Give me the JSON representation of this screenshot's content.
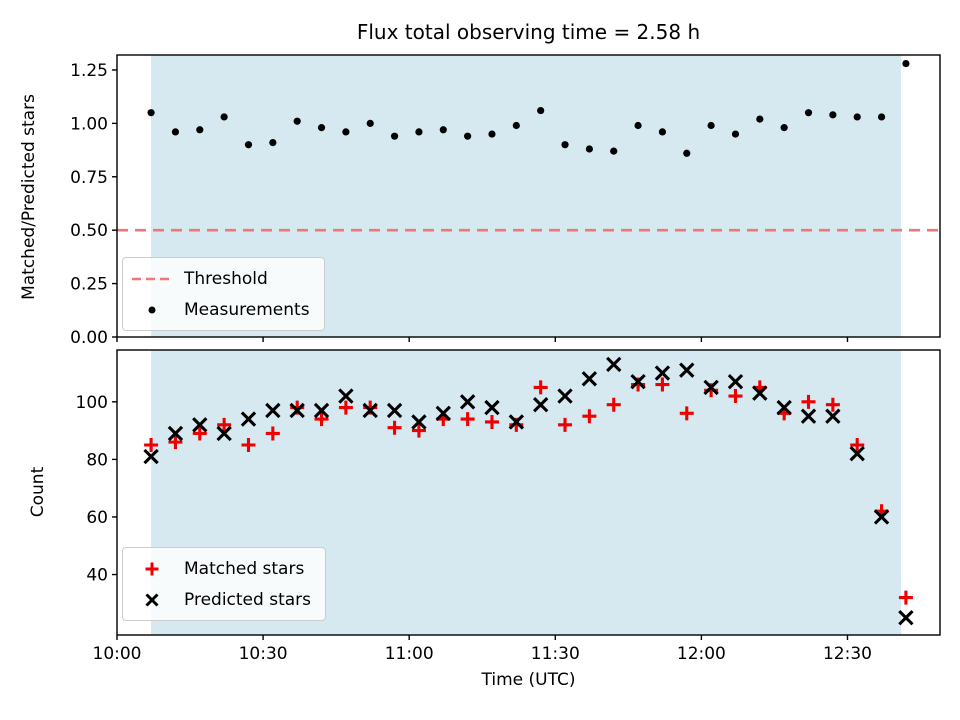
{
  "figure": {
    "title": "Flux total observing time = 2.58 h",
    "background": "#ffffff",
    "shade_color": "#d6e9f0",
    "axis_color": "#000000"
  },
  "x_axis": {
    "label": "Time (UTC)",
    "range_minutes_after_10utc": [
      0,
      169
    ],
    "tick_minutes": [
      0,
      30,
      60,
      90,
      120,
      150
    ],
    "tick_labels": [
      "10:00",
      "10:30",
      "11:00",
      "11:30",
      "12:00",
      "12:30"
    ]
  },
  "chart_data": [
    {
      "type": "scatter",
      "panel": "top",
      "title": "Flux total observing time = 2.58 h",
      "ylabel": "Matched/Predicted stars",
      "ylim": [
        0,
        1.32
      ],
      "ytick_values": [
        0,
        0.25,
        0.5,
        0.75,
        1.0,
        1.25
      ],
      "ytick_labels": [
        "0.00",
        "0.25",
        "0.50",
        "0.75",
        "1.00",
        "1.25"
      ],
      "show_xtick_labels": false,
      "grid": false,
      "shade_minutes": [
        7,
        161
      ],
      "x_minutes": [
        7,
        12,
        17,
        22,
        27,
        32,
        37,
        42,
        47,
        52,
        57,
        62,
        67,
        72,
        77,
        82,
        87,
        92,
        97,
        102,
        107,
        112,
        117,
        122,
        127,
        132,
        137,
        142,
        147,
        152,
        157,
        162
      ],
      "series": [
        {
          "name": "Threshold",
          "kind": "hline",
          "y": 0.5,
          "color": "#ee7777",
          "dashed": true
        },
        {
          "name": "Measurements",
          "kind": "scatter",
          "marker": "dot",
          "color": "#000000",
          "values": [
            1.05,
            0.96,
            0.97,
            1.03,
            0.9,
            0.91,
            1.01,
            0.98,
            0.96,
            1.0,
            0.94,
            0.96,
            0.97,
            0.94,
            0.95,
            0.99,
            1.06,
            0.9,
            0.88,
            0.87,
            0.99,
            0.96,
            0.86,
            0.99,
            0.95,
            1.02,
            0.98,
            1.05,
            1.04,
            1.03,
            1.03,
            1.28
          ]
        }
      ],
      "legend": {
        "position": "lower left",
        "entries": [
          "Threshold",
          "Measurements"
        ]
      }
    },
    {
      "type": "scatter",
      "panel": "bottom",
      "ylabel": "Count",
      "xlabel": "Time (UTC)",
      "ylim": [
        19,
        118
      ],
      "ytick_values": [
        40,
        60,
        80,
        100
      ],
      "ytick_labels": [
        "40",
        "60",
        "80",
        "100"
      ],
      "show_xtick_labels": true,
      "grid": false,
      "shade_minutes": [
        7,
        161
      ],
      "x_minutes": [
        7,
        12,
        17,
        22,
        27,
        32,
        37,
        42,
        47,
        52,
        57,
        62,
        67,
        72,
        77,
        82,
        87,
        92,
        97,
        102,
        107,
        112,
        117,
        122,
        127,
        132,
        137,
        142,
        147,
        152,
        157,
        162
      ],
      "series": [
        {
          "name": "Matched stars",
          "kind": "scatter",
          "marker": "plus",
          "color": "#ee0000",
          "values": [
            85,
            86,
            89,
            92,
            85,
            89,
            98,
            94,
            98,
            98,
            91,
            90,
            94,
            94,
            93,
            92,
            105,
            92,
            95,
            99,
            106,
            106,
            96,
            104,
            102,
            105,
            96,
            100,
            99,
            85,
            62,
            32
          ]
        },
        {
          "name": "Predicted stars",
          "kind": "scatter",
          "marker": "x",
          "color": "#000000",
          "values": [
            81,
            89,
            92,
            89,
            94,
            97,
            97,
            97,
            102,
            97,
            97,
            93,
            96,
            100,
            98,
            93,
            99,
            102,
            108,
            113,
            107,
            110,
            111,
            105,
            107,
            103,
            98,
            95,
            95,
            82,
            60,
            25
          ]
        }
      ],
      "legend": {
        "position": "lower left",
        "entries": [
          "Matched stars",
          "Predicted stars"
        ]
      }
    }
  ]
}
